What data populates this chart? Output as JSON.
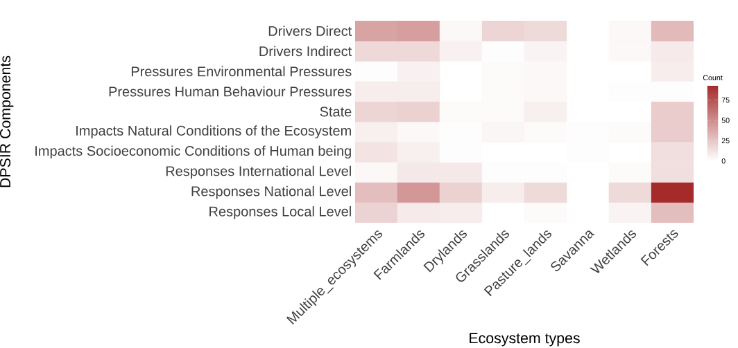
{
  "chart_data": {
    "type": "heatmap",
    "xlabel": "Ecosystem types",
    "ylabel": "DPSIR Components",
    "clabel": "Count",
    "categories": [
      "Multiple_ecosystems",
      "Farmlands",
      "Drylands",
      "Grasslands",
      "Pasture_lands",
      "Savanna",
      "Wetlands",
      "Forests"
    ],
    "y_categories": [
      "Drivers Direct",
      "Drivers Indirect",
      "Pressures Environmental Pressures",
      "Pressures Human Behaviour Pressures",
      "State",
      "Impacts Natural Conditions of the Ecosystem",
      "Impacts Socioeconomic Conditions of Human being",
      "Responses International Level",
      "Responses National Level",
      "Responses Local Level"
    ],
    "cells": [
      [
        40,
        42,
        3,
        18,
        16,
        null,
        3,
        30
      ],
      [
        17,
        17,
        6,
        1,
        5,
        null,
        3,
        9
      ],
      [
        1,
        6,
        null,
        2,
        3,
        null,
        null,
        8
      ],
      [
        8,
        8,
        null,
        2,
        3,
        null,
        1,
        1
      ],
      [
        18,
        20,
        2,
        2,
        7,
        null,
        null,
        22
      ],
      [
        7,
        3,
        1,
        4,
        2,
        1,
        2,
        22
      ],
      [
        12,
        7,
        1,
        null,
        null,
        1,
        null,
        14
      ],
      [
        3,
        10,
        10,
        1,
        1,
        null,
        2,
        14
      ],
      [
        28,
        45,
        20,
        8,
        16,
        null,
        16,
        93
      ],
      [
        19,
        9,
        8,
        null,
        2,
        null,
        5,
        28
      ]
    ],
    "colors": [
      "#ffffff",
      "#a52a2a"
    ],
    "clim": [
      0,
      93
    ],
    "cticks": [
      0,
      25,
      50,
      75
    ]
  }
}
